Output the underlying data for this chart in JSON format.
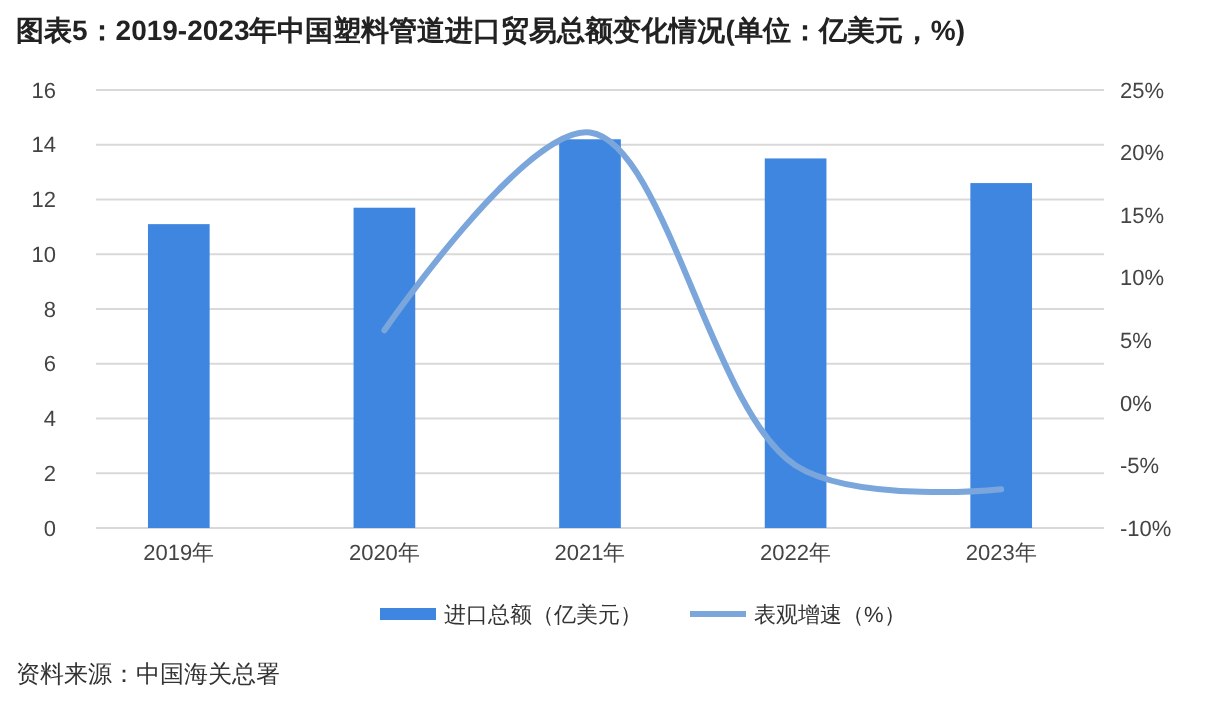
{
  "chart_data": {
    "type": "bar",
    "title": "图表5：2019-2023年中国塑料管道进口贸易总额变化情况(单位：亿美元，%)",
    "categories": [
      "2019年",
      "2020年",
      "2021年",
      "2022年",
      "2023年"
    ],
    "series": [
      {
        "name": "进口总额（亿美元）",
        "color": "#3f86e0",
        "values": [
          11.1,
          11.7,
          14.2,
          13.5,
          12.6
        ]
      },
      {
        "name": "表观增速（%）",
        "type": "line",
        "axis": "y2",
        "color": "#7aa6dc",
        "values": [
          null,
          5.8,
          21.6,
          -5,
          -6.9
        ]
      }
    ],
    "ylim": [
      0,
      16
    ],
    "yticks": [
      0,
      2,
      4,
      6,
      8,
      10,
      12,
      14,
      16
    ],
    "y2lim": [
      -10,
      25
    ],
    "y2ticks": [
      {
        "value": -10,
        "label": "-10%"
      },
      {
        "value": -5,
        "label": "-5%"
      },
      {
        "value": 0,
        "label": "0%"
      },
      {
        "value": 5,
        "label": "5%"
      },
      {
        "value": 10,
        "label": "10%"
      },
      {
        "value": 15,
        "label": "15%"
      },
      {
        "value": 20,
        "label": "20%"
      },
      {
        "value": 25,
        "label": "25%"
      }
    ],
    "grid": "y",
    "legend": "bottom",
    "marker": "none",
    "annotations": [
      "资料来源：中国海关总署"
    ]
  }
}
